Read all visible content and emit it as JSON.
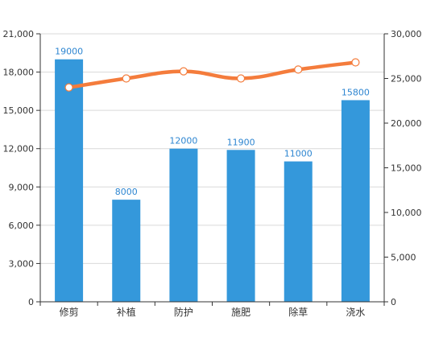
{
  "chart_data": {
    "type": "bar",
    "categories": [
      "修剪",
      "补植",
      "防护",
      "施肥",
      "除草",
      "浇水"
    ],
    "series": [
      {
        "type": "bar",
        "axis": "left",
        "color": "#3498db",
        "label_color": "#2e86d1",
        "values": [
          19000,
          8000,
          12000,
          11900,
          11000,
          15800
        ],
        "labels": [
          "19000",
          "8000",
          "12000",
          "11900",
          "11000",
          "15800"
        ]
      },
      {
        "type": "line",
        "axis": "right",
        "color": "#f47c3c",
        "smooth": true,
        "values": [
          24000,
          25000,
          25800,
          25000,
          26000,
          26800
        ]
      }
    ],
    "y_left": {
      "min": 0,
      "max": 21000,
      "ticks": [
        0,
        3000,
        6000,
        9000,
        12000,
        15000,
        18000,
        21000
      ],
      "tick_labels": [
        "0",
        "3,000",
        "6,000",
        "9,000",
        "12,000",
        "15,000",
        "18,000",
        "21,000"
      ]
    },
    "y_right": {
      "min": 0,
      "max": 30000,
      "ticks": [
        0,
        5000,
        10000,
        15000,
        20000,
        25000,
        30000
      ],
      "tick_labels": [
        "0",
        "5,000",
        "10,000",
        "15,000",
        "20,000",
        "25,000",
        "30,000"
      ]
    },
    "grid": true,
    "title": "",
    "xlabel": "",
    "ylabel": ""
  }
}
